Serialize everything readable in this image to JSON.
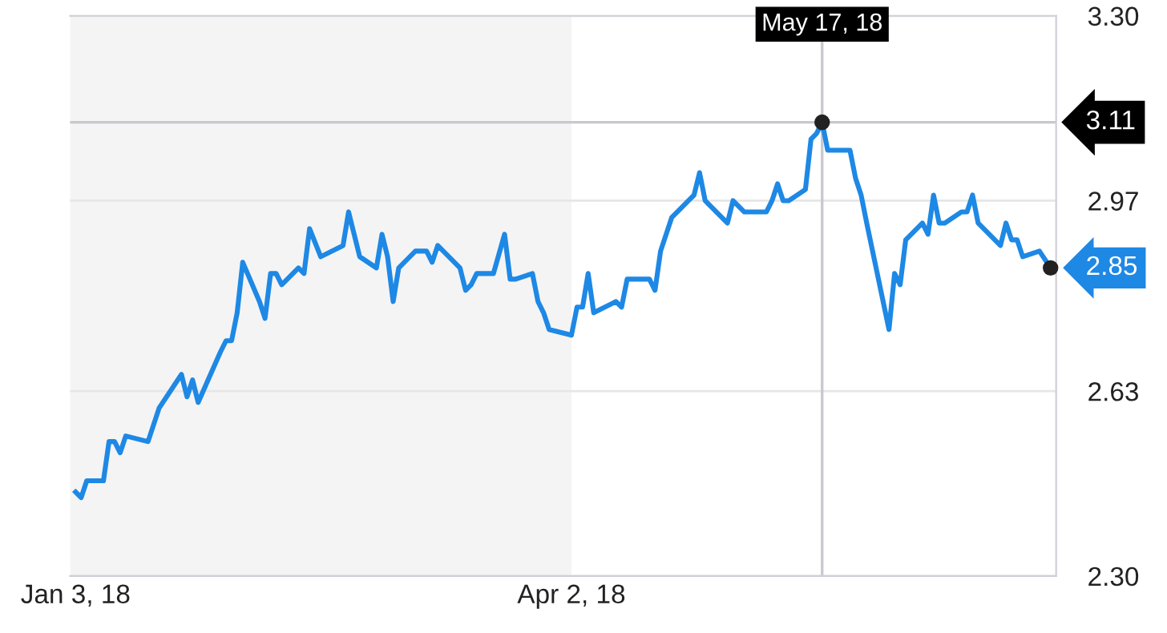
{
  "chart_data": {
    "type": "line",
    "x": [
      "2018-01-03",
      "2018-01-04",
      "2018-01-05",
      "2018-01-08",
      "2018-01-09",
      "2018-01-10",
      "2018-01-11",
      "2018-01-12",
      "2018-01-16",
      "2018-01-18",
      "2018-01-22",
      "2018-01-23",
      "2018-01-24",
      "2018-01-25",
      "2018-01-29",
      "2018-01-30",
      "2018-01-31",
      "2018-02-01",
      "2018-02-02",
      "2018-02-05",
      "2018-02-06",
      "2018-02-07",
      "2018-02-08",
      "2018-02-09",
      "2018-02-12",
      "2018-02-13",
      "2018-02-14",
      "2018-02-16",
      "2018-02-20",
      "2018-02-21",
      "2018-02-22",
      "2018-02-23",
      "2018-02-26",
      "2018-02-27",
      "2018-02-28",
      "2018-03-01",
      "2018-03-02",
      "2018-03-05",
      "2018-03-06",
      "2018-03-07",
      "2018-03-08",
      "2018-03-09",
      "2018-03-13",
      "2018-03-14",
      "2018-03-15",
      "2018-03-16",
      "2018-03-19",
      "2018-03-21",
      "2018-03-22",
      "2018-03-23",
      "2018-03-26",
      "2018-03-27",
      "2018-03-28",
      "2018-03-29",
      "2018-04-02",
      "2018-04-03",
      "2018-04-04",
      "2018-04-05",
      "2018-04-06",
      "2018-04-10",
      "2018-04-11",
      "2018-04-12",
      "2018-04-13",
      "2018-04-16",
      "2018-04-17",
      "2018-04-18",
      "2018-04-20",
      "2018-04-23",
      "2018-04-24",
      "2018-04-25",
      "2018-04-26",
      "2018-04-30",
      "2018-05-01",
      "2018-05-02",
      "2018-05-03",
      "2018-05-07",
      "2018-05-08",
      "2018-05-09",
      "2018-05-10",
      "2018-05-11",
      "2018-05-14",
      "2018-05-15",
      "2018-05-16",
      "2018-05-17",
      "2018-05-18",
      "2018-05-22",
      "2018-05-23",
      "2018-05-24",
      "2018-05-25",
      "2018-05-29",
      "2018-05-30",
      "2018-05-31",
      "2018-06-01",
      "2018-06-04",
      "2018-06-05",
      "2018-06-06",
      "2018-06-07",
      "2018-06-08",
      "2018-06-11",
      "2018-06-12",
      "2018-06-13",
      "2018-06-14",
      "2018-06-15",
      "2018-06-18",
      "2018-06-19",
      "2018-06-20",
      "2018-06-21",
      "2018-06-22",
      "2018-06-25",
      "2018-06-27"
    ],
    "series": [
      {
        "color": "#1e88e5",
        "values": [
          2.45,
          2.44,
          2.47,
          2.47,
          2.54,
          2.54,
          2.52,
          2.55,
          2.54,
          2.6,
          2.66,
          2.62,
          2.65,
          2.61,
          2.7,
          2.72,
          2.72,
          2.77,
          2.86,
          2.79,
          2.76,
          2.84,
          2.84,
          2.82,
          2.85,
          2.84,
          2.92,
          2.87,
          2.89,
          2.95,
          2.91,
          2.87,
          2.85,
          2.91,
          2.87,
          2.79,
          2.85,
          2.88,
          2.88,
          2.88,
          2.86,
          2.89,
          2.85,
          2.81,
          2.82,
          2.84,
          2.84,
          2.91,
          2.83,
          2.83,
          2.84,
          2.79,
          2.77,
          2.74,
          2.73,
          2.78,
          2.78,
          2.84,
          2.77,
          2.79,
          2.78,
          2.83,
          2.83,
          2.83,
          2.81,
          2.88,
          2.94,
          2.97,
          2.98,
          3.02,
          2.97,
          2.93,
          2.97,
          2.96,
          2.95,
          2.95,
          2.97,
          3.0,
          2.97,
          2.97,
          2.99,
          3.08,
          3.09,
          3.11,
          3.06,
          3.06,
          3.01,
          2.98,
          2.93,
          2.74,
          2.84,
          2.82,
          2.9,
          2.93,
          2.91,
          2.98,
          2.93,
          2.93,
          2.95,
          2.95,
          2.98,
          2.93,
          2.92,
          2.89,
          2.93,
          2.9,
          2.9,
          2.87,
          2.88,
          2.85
        ]
      }
    ],
    "xlim": [
      "2018-01-02",
      "2018-06-28"
    ],
    "xticks": [
      {
        "value": "2018-01-03",
        "label": "Jan 3, 18"
      },
      {
        "value": "2018-04-02",
        "label": "Apr 2, 18"
      }
    ],
    "ylim": [
      2.3,
      3.3
    ],
    "yticks": [
      {
        "value": 2.3,
        "label": "2.30"
      },
      2.63,
      2.97,
      {
        "value": 3.3,
        "label": "3.30"
      }
    ],
    "grid": "y",
    "bands": [
      {
        "axis": "x",
        "from": "2018-01-02",
        "to": "2018-04-02",
        "color": "#f4f4f4"
      }
    ],
    "ref_lines": [
      {
        "axis": "y",
        "value": 3.11,
        "label": "3.11",
        "color": "#c8c8d0"
      },
      {
        "axis": "x",
        "value": "2018-05-17",
        "label": "May 17, 18",
        "color": "#c8c8d0"
      }
    ],
    "annotations": [
      {
        "text": "2.85",
        "x": "2018-06-27",
        "y": 2.85
      }
    ]
  }
}
